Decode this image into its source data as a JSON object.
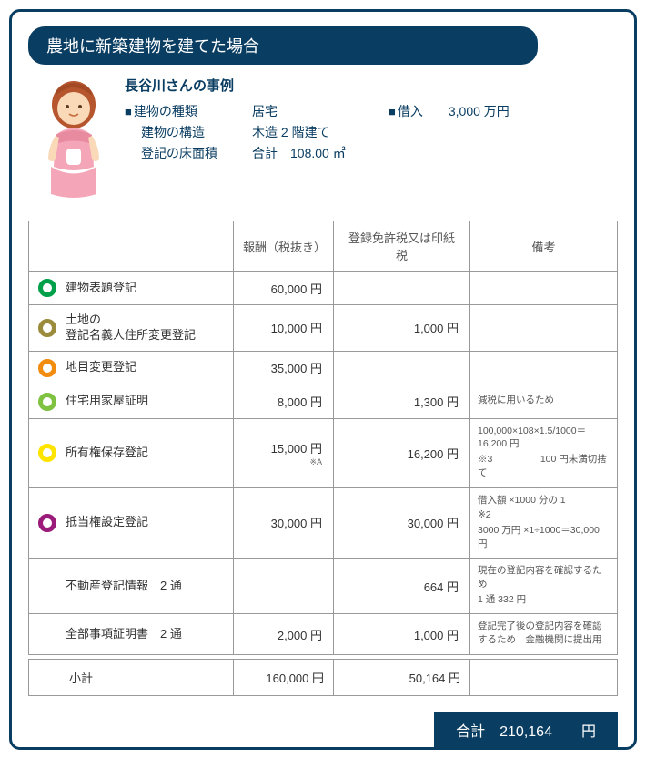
{
  "title": "農地に新築建物を建てた場合",
  "case": {
    "person": "長谷川さんの事例",
    "rows": [
      {
        "label": "建物の種類",
        "value": "居宅",
        "prefix": true
      },
      {
        "label": "建物の構造",
        "value": "木造 2 階建て",
        "prefix": false
      },
      {
        "label": "登記の床面積",
        "value": "合計　108.00 ㎡",
        "prefix": false
      }
    ],
    "loan_label": "借入",
    "loan_value": "3,000 万円"
  },
  "table": {
    "headers": [
      "",
      "報酬（税抜き）",
      "登録免許税又は印紙税",
      "備考"
    ],
    "rows": [
      {
        "circle": "#00a04a",
        "label": "建物表題登記",
        "fee": "60,000 円",
        "tax": "",
        "note": "",
        "sub": ""
      },
      {
        "circle": "#9b8b3c",
        "label": "土地の\n登記名義人住所変更登記",
        "fee": "10,000 円",
        "tax": "1,000 円",
        "note": "",
        "sub": ""
      },
      {
        "circle": "#f28c0f",
        "label": "地目変更登記",
        "fee": "35,000 円",
        "tax": "",
        "note": "",
        "sub": ""
      },
      {
        "circle": "#7fc241",
        "label": "住宅用家屋証明",
        "fee": "8,000 円",
        "tax": "1,300 円",
        "note": "減税に用いるため",
        "sub": ""
      },
      {
        "circle": "#ffe400",
        "label": "所有権保存登記",
        "fee": "15,000 円",
        "tax": "16,200 円",
        "note": "100,000×108×1.5/1000＝16,200 円\n※3　　　　　100 円未満切捨て",
        "sub": "※A"
      },
      {
        "circle": "#9b1b7a",
        "label": "抵当権設定登記",
        "fee": "30,000 円",
        "tax": "30,000 円",
        "note": "借入額 ×1000 分の 1\n※2\n3000 万円 ×1÷1000＝30,000 円",
        "sub": ""
      },
      {
        "circle": "",
        "label": "不動産登記情報　2 通",
        "fee": "",
        "tax": "664 円",
        "note": "現在の登記内容を確認するため\n1 通 332 円",
        "sub": ""
      },
      {
        "circle": "",
        "label": "全部事項証明書　2 通",
        "fee": "2,000 円",
        "tax": "1,000 円",
        "note": "登記完了後の登記内容を確認するため　金融機関に提出用",
        "sub": ""
      }
    ],
    "subtotal": {
      "label": "小計",
      "fee": "160,000 円",
      "tax": "50,164 円"
    }
  },
  "total": {
    "label": "合計",
    "value": "210,164",
    "unit": "円"
  },
  "colors": {
    "primary": "#0a3d62",
    "border": "#999999"
  }
}
